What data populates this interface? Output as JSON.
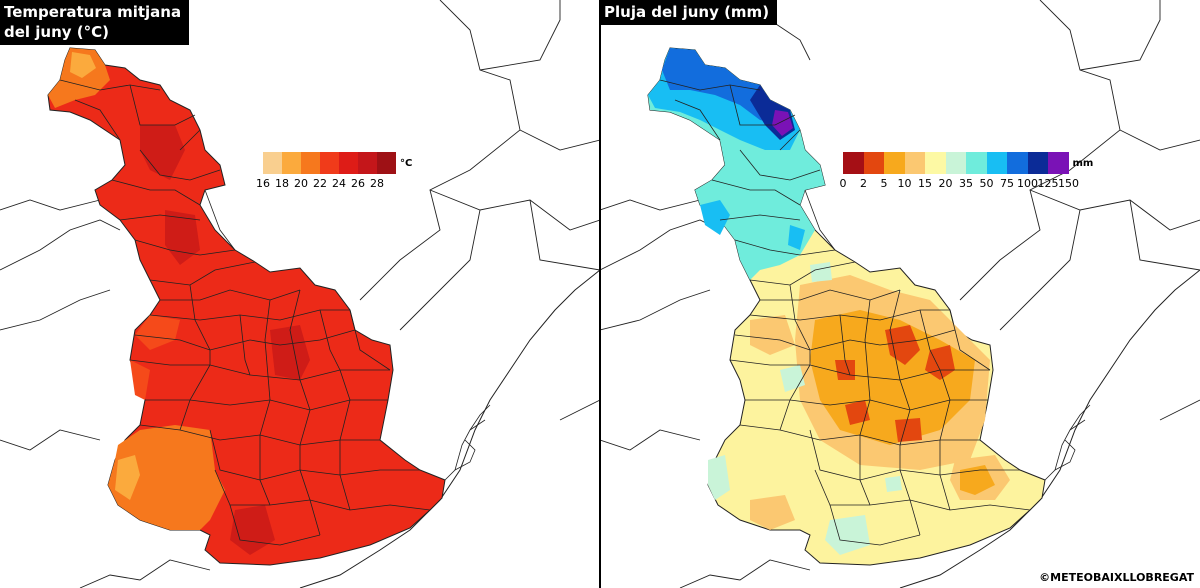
{
  "left_panel": {
    "title": "Temperatura mitjana\ndel juny (°C)",
    "legend": {
      "unit": "°C",
      "colors": [
        "#f9cf8f",
        "#fbaa3d",
        "#f6781d",
        "#f03b1a",
        "#de1c17",
        "#c4161a",
        "#9e1115"
      ],
      "ticks": [
        "16",
        "18",
        "20",
        "22",
        "24",
        "26",
        "28"
      ]
    }
  },
  "right_panel": {
    "title": "Pluja del juny (mm)",
    "legend": {
      "unit": "mm",
      "colors": [
        "#a50f15",
        "#e3470f",
        "#f7a91d",
        "#fbc871",
        "#fdf9a4",
        "#c9f4d8",
        "#6fecdc",
        "#18bef3",
        "#126ddd",
        "#0b2b97",
        "#7a12b6"
      ],
      "ticks": [
        "0",
        "2",
        "5",
        "10",
        "15",
        "20",
        "35",
        "50",
        "75",
        "100",
        "125",
        "150"
      ]
    }
  },
  "credit": "©METEOBAIXLLOBREGAT"
}
